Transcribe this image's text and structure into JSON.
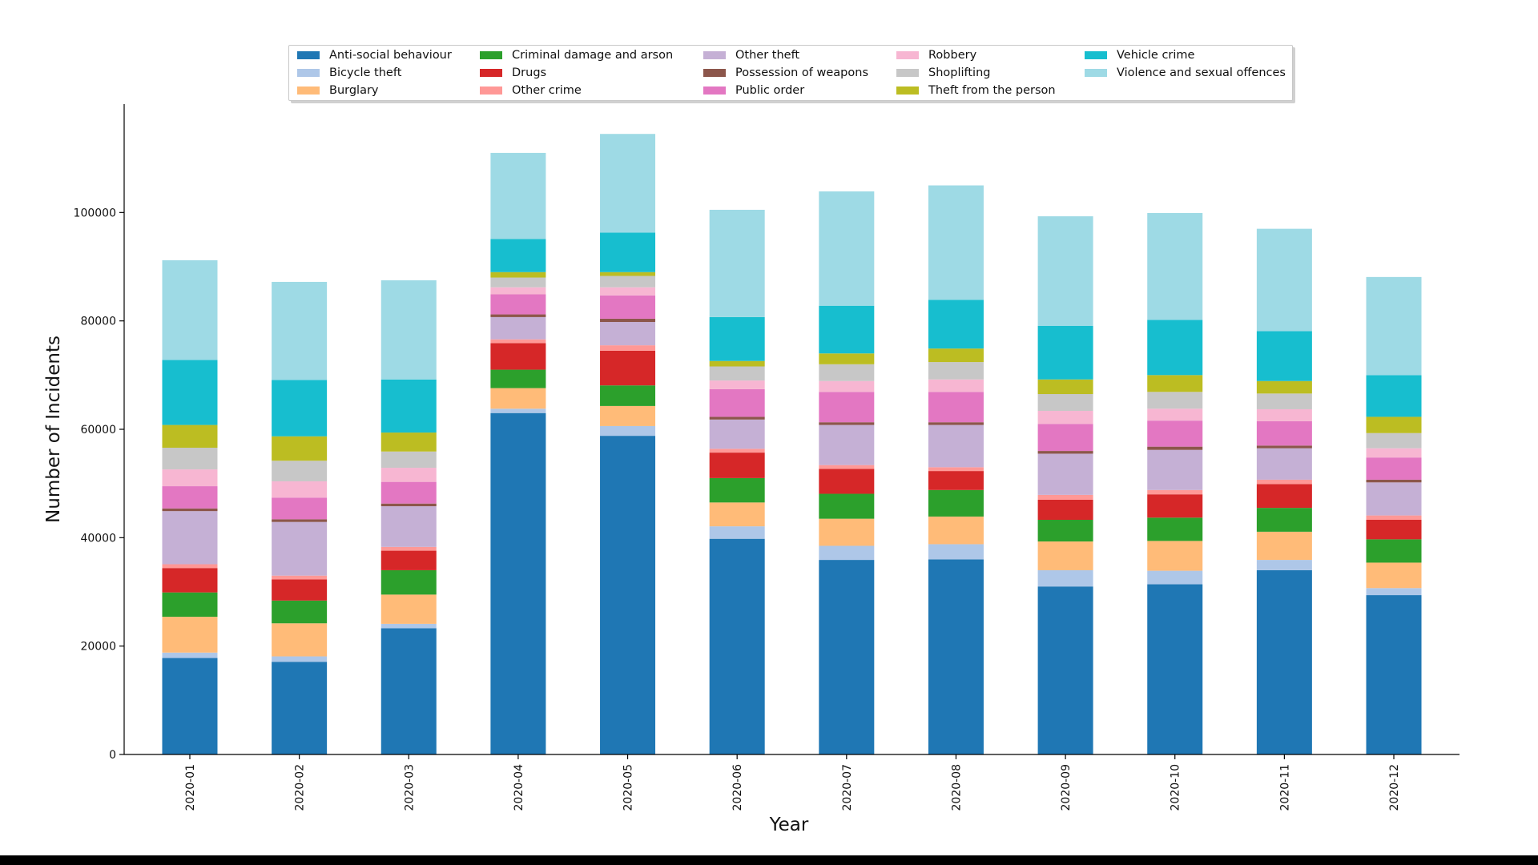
{
  "chart_data": {
    "type": "bar",
    "stacked": true,
    "title": "",
    "xlabel": "Year",
    "ylabel": "Number of Incidents",
    "ylim": [
      0,
      120000
    ],
    "yticks": [
      0,
      20000,
      40000,
      60000,
      80000,
      100000
    ],
    "ytick_labels": [
      "0",
      "20000",
      "40000",
      "60000",
      "80000",
      "100000"
    ],
    "grid": false,
    "legend_position": "top-center",
    "categories": [
      "2020-01",
      "2020-02",
      "2020-03",
      "2020-04",
      "2020-05",
      "2020-06",
      "2020-07",
      "2020-08",
      "2020-09",
      "2020-10",
      "2020-11",
      "2020-12"
    ],
    "series": [
      {
        "name": "Anti-social behaviour",
        "color": "#1f77b4",
        "values": [
          17800,
          17100,
          23300,
          63000,
          58800,
          39800,
          35900,
          36000,
          31000,
          31400,
          34000,
          29400
        ]
      },
      {
        "name": "Bicycle theft",
        "color": "#aec7e8",
        "values": [
          1000,
          1000,
          800,
          800,
          1800,
          2300,
          2600,
          2800,
          3000,
          2500,
          1900,
          1300
        ]
      },
      {
        "name": "Burglary",
        "color": "#ffbb78",
        "values": [
          6600,
          6100,
          5400,
          3800,
          3700,
          4400,
          5000,
          5100,
          5300,
          5500,
          5200,
          4700
        ]
      },
      {
        "name": "Criminal damage and arson",
        "color": "#2ca02c",
        "values": [
          4500,
          4200,
          4500,
          3400,
          3800,
          4500,
          4600,
          4900,
          4000,
          4300,
          4400,
          4300
        ]
      },
      {
        "name": "Drugs",
        "color": "#d62728",
        "values": [
          4500,
          3900,
          3600,
          4900,
          6400,
          4700,
          4600,
          3500,
          3700,
          4300,
          4400,
          3600
        ]
      },
      {
        "name": "Other crime",
        "color": "#ff9896",
        "values": [
          700,
          700,
          700,
          700,
          1000,
          700,
          700,
          700,
          900,
          800,
          800,
          800
        ]
      },
      {
        "name": "Other theft",
        "color": "#c5b0d5",
        "values": [
          9800,
          9900,
          7500,
          4100,
          4300,
          5400,
          7400,
          7800,
          7600,
          7400,
          5800,
          6100
        ]
      },
      {
        "name": "Possession of weapons",
        "color": "#8c564b",
        "values": [
          500,
          500,
          500,
          500,
          600,
          500,
          500,
          500,
          500,
          600,
          500,
          500
        ]
      },
      {
        "name": "Public order",
        "color": "#e377c2",
        "values": [
          4100,
          4000,
          4000,
          3700,
          4300,
          5100,
          5600,
          5600,
          5000,
          4800,
          4500,
          4100
        ]
      },
      {
        "name": "Robbery",
        "color": "#f7b6d2",
        "values": [
          3100,
          3000,
          2600,
          1300,
          1500,
          1600,
          2000,
          2300,
          2400,
          2200,
          2200,
          1700
        ]
      },
      {
        "name": "Shoplifting",
        "color": "#c7c7c7",
        "values": [
          4000,
          3800,
          3000,
          1800,
          2100,
          2600,
          3100,
          3200,
          3100,
          3100,
          2900,
          2800
        ]
      },
      {
        "name": "Theft from the person",
        "color": "#bcbd22",
        "values": [
          4200,
          4500,
          3500,
          1000,
          700,
          1000,
          2000,
          2500,
          2700,
          3100,
          2300,
          3000
        ]
      },
      {
        "name": "Vehicle crime",
        "color": "#17becf",
        "values": [
          12000,
          10400,
          9800,
          6100,
          7300,
          8100,
          8800,
          9000,
          9900,
          10200,
          9200,
          7700
        ]
      },
      {
        "name": "Violence and sexual offences",
        "color": "#9edae5",
        "values": [
          18400,
          18100,
          18300,
          15900,
          18200,
          19800,
          21100,
          21100,
          20200,
          19700,
          18900,
          18100
        ]
      }
    ]
  }
}
